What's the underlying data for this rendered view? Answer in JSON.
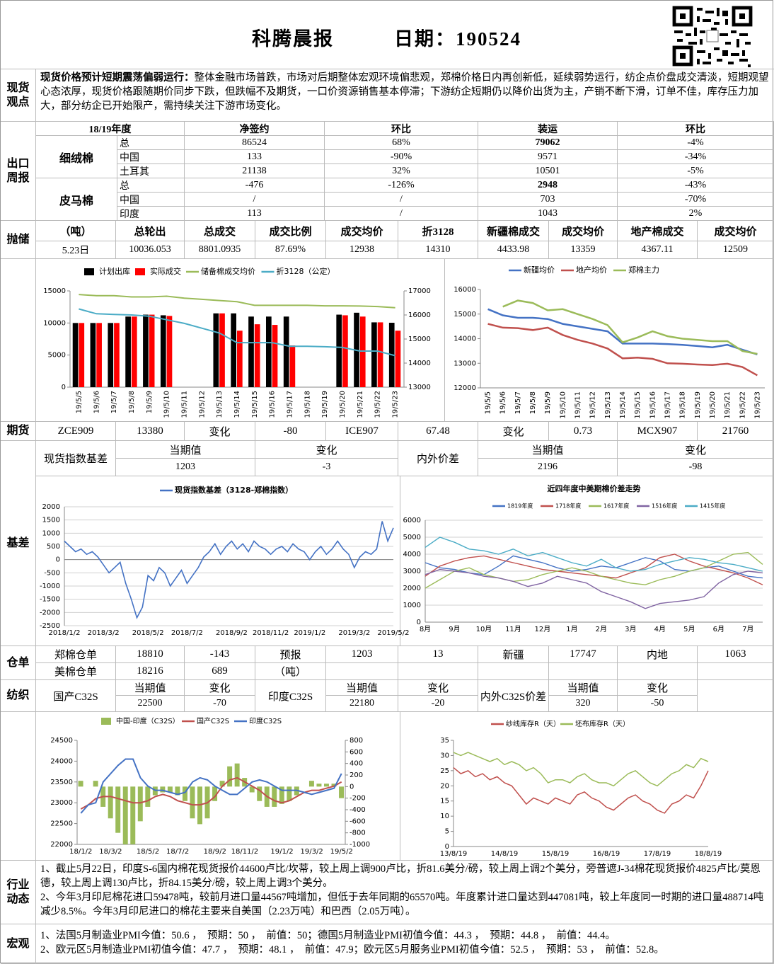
{
  "header": {
    "title": "科腾晨报",
    "date": "日期：190524"
  },
  "spot_view": {
    "label": "现货观点",
    "headline": "现货价格预计短期震荡偏弱运行：",
    "text": "整体金融市场普跌，市场对后期整体宏观环境偏悲观，郑棉价格日内再创新低，延续弱势运行，纺企点价盘成交清淡，短期观望心态浓厚，现货价格跟随期价同步下跌，但跌幅不及期货，一口价资源销售基本停滞；下游纺企短期仍以降价出货为主，产销不断下滑，订单不佳，库存压力加大，部分纺企已开始限产，需持续关注下游市场变化。"
  },
  "export_weekly": {
    "label": "出口周报",
    "season": "18/19年度",
    "columns": [
      "净签约",
      "环比",
      "装运",
      "环比"
    ],
    "groups": [
      {
        "name": "细绒棉",
        "rows": [
          [
            "总",
            "86524",
            "68%",
            "79062",
            "-4%"
          ],
          [
            "中国",
            "133",
            "-90%",
            "9571",
            "-34%"
          ],
          [
            "土耳其",
            "21138",
            "32%",
            "10501",
            "-5%"
          ]
        ]
      },
      {
        "name": "皮马棉",
        "rows": [
          [
            "总",
            "-476",
            "-126%",
            "2948",
            "-43%"
          ],
          [
            "中国",
            "/",
            "/",
            "703",
            "-70%"
          ],
          [
            "印度",
            "113",
            "/",
            "1043",
            "2%"
          ]
        ]
      }
    ]
  },
  "reserve_sale": {
    "label": "抛储",
    "header": [
      "（吨）",
      "总轮出",
      "总成交",
      "成交比例",
      "成交均价",
      "折3128",
      "新疆棉成交",
      "成交均价",
      "地产棉成交",
      "成交均价"
    ],
    "row": [
      "5.23日",
      "10036.053",
      "8801.0935",
      "87.69%",
      "12938",
      "14310",
      "4433.98",
      "13359",
      "4367.11",
      "12509"
    ]
  },
  "futures": {
    "label": "期货",
    "cells": [
      "ZCE909",
      "13380",
      "变化",
      "-80",
      "ICE907",
      "67.48",
      "变化",
      "0.73",
      "MCX907",
      "21760"
    ]
  },
  "basis": {
    "label": "基差",
    "index_label": "现货指数基差",
    "index_header": [
      "当期值",
      "变化"
    ],
    "index_values": [
      "1203",
      "-3"
    ],
    "spread_label": "内外价差",
    "spread_header": [
      "当期值",
      "变化"
    ],
    "spread_values": [
      "2196",
      "-98"
    ]
  },
  "warehouse": {
    "label": "仓单",
    "rows": [
      [
        "郑棉仓单",
        "18810",
        "-143",
        "预报",
        "1203",
        "13",
        "新疆",
        "17747",
        "内地",
        "1063"
      ],
      [
        "美棉仓单",
        "18216",
        "689",
        "（吨）"
      ]
    ]
  },
  "textile": {
    "label": "纺织",
    "groups": [
      {
        "name": "国产C32S",
        "header": [
          "当期值",
          "变化"
        ],
        "values": [
          "22500",
          "-70"
        ]
      },
      {
        "name": "印度C32S",
        "header": [
          "当期值",
          "变化"
        ],
        "values": [
          "22180",
          "-20"
        ]
      },
      {
        "name": "内外C32S价差",
        "header": [
          "当期值",
          "变化"
        ],
        "values": [
          "320",
          "-50"
        ]
      }
    ]
  },
  "charts": [
    {
      "type": "bar-line",
      "categories": [
        "19/5/5",
        "19/5/6",
        "19/5/7",
        "19/5/8",
        "19/5/9",
        "19/5/10",
        "19/5/11",
        "19/5/12",
        "19/5/13",
        "19/5/14",
        "19/5/15",
        "19/5/16",
        "19/5/17",
        "19/5/18",
        "19/5/19",
        "19/5/20",
        "19/5/21",
        "19/5/22",
        "19/5/23"
      ],
      "ylim": [
        0,
        15000
      ],
      "yticks": [
        0,
        5000,
        10000,
        15000
      ],
      "y2lim": [
        13000,
        17000
      ],
      "y2ticks": [
        13000,
        14000,
        15000,
        16000,
        17000
      ],
      "series": [
        {
          "name": "计划出库",
          "color": "#000000",
          "kind": "bar",
          "values": [
            10000,
            10000,
            10000,
            11000,
            11300,
            11200,
            null,
            null,
            11500,
            11500,
            11000,
            11000,
            11000,
            null,
            null,
            11300,
            11600,
            10100,
            10036
          ]
        },
        {
          "name": "实际成交",
          "color": "#ff0000",
          "kind": "bar",
          "values": [
            10000,
            10000,
            10000,
            11000,
            11300,
            11100,
            null,
            null,
            11500,
            8800,
            9800,
            9700,
            6500,
            null,
            null,
            11200,
            11000,
            10100,
            8801
          ]
        },
        {
          "name": "储备棉成交均价",
          "color": "#9bbb59",
          "kind": "line",
          "axis": "y2",
          "values": [
            16850,
            16800,
            16800,
            16750,
            16750,
            16780,
            16700,
            16650,
            16600,
            16550,
            16400,
            16400,
            16400,
            16400,
            16380,
            16380,
            16370,
            16350,
            16300
          ]
        },
        {
          "name": "折3128（公定）",
          "color": "#4bacc6",
          "kind": "line",
          "axis": "y2",
          "values": [
            16250,
            16050,
            16020,
            16000,
            15950,
            15800,
            15650,
            15450,
            15250,
            14850,
            14850,
            14850,
            14700,
            14700,
            14680,
            14650,
            14500,
            14500,
            14310
          ]
        }
      ]
    },
    {
      "type": "line",
      "categories": [
        "19/5/5",
        "19/5/6",
        "19/5/7",
        "19/5/8",
        "19/5/9",
        "19/5/10",
        "19/5/11",
        "19/5/12",
        "19/5/13",
        "19/5/14",
        "19/5/15",
        "19/5/16",
        "19/5/17",
        "19/5/18",
        "19/5/19",
        "19/5/20",
        "19/5/21",
        "19/5/22",
        "19/5/23"
      ],
      "ylim": [
        12000,
        16000
      ],
      "yticks": [
        12000,
        13000,
        14000,
        15000,
        16000
      ],
      "series": [
        {
          "name": "新疆均价",
          "color": "#4472c4",
          "values": [
            15200,
            14950,
            14850,
            14850,
            14800,
            14600,
            14500,
            14400,
            14300,
            13800,
            13800,
            13800,
            13780,
            13750,
            13700,
            13650,
            13750,
            13550,
            13359
          ]
        },
        {
          "name": "地产均价",
          "color": "#c0504d",
          "values": [
            14600,
            14450,
            14430,
            14350,
            14450,
            14150,
            13950,
            13800,
            13600,
            13200,
            13230,
            13180,
            13000,
            12980,
            12950,
            12930,
            12980,
            12850,
            12509
          ]
        },
        {
          "name": "郑棉主力",
          "color": "#9bbb59",
          "values": [
            null,
            15300,
            15550,
            15450,
            15150,
            15200,
            15000,
            14800,
            14550,
            13850,
            14050,
            14300,
            14100,
            14000,
            13950,
            13900,
            13900,
            13500,
            13380
          ]
        }
      ]
    },
    {
      "type": "line",
      "grid": true,
      "categories": [
        "2018/1/2",
        null,
        null,
        null,
        null,
        null,
        null,
        "2018/3/2",
        null,
        null,
        null,
        null,
        null,
        null,
        null,
        "2018/5/2",
        null,
        null,
        null,
        null,
        null,
        null,
        "2018/7/2",
        null,
        null,
        null,
        null,
        null,
        null,
        null,
        "2018/9/2",
        null,
        null,
        null,
        null,
        null,
        null,
        "2018/11/2",
        null,
        null,
        null,
        null,
        null,
        null,
        "2019/1/2",
        null,
        null,
        null,
        null,
        null,
        null,
        null,
        "2019/3/2",
        null,
        null,
        null,
        null,
        null,
        null,
        "2019/5/2"
      ],
      "ylim": [
        -2500,
        2000
      ],
      "yticks": [
        -2500,
        -2000,
        -1500,
        -1000,
        -500,
        0,
        500,
        1000,
        1500,
        2000
      ],
      "series": [
        {
          "name": "现货指数基差（3128-郑棉指数）",
          "color": "#4472c4",
          "values": [
            700,
            500,
            300,
            400,
            200,
            300,
            100,
            -200,
            -500,
            -300,
            -100,
            -900,
            -1500,
            -2200,
            -1800,
            -600,
            -800,
            -300,
            -500,
            -1000,
            -700,
            -400,
            -900,
            -600,
            -300,
            100,
            300,
            600,
            200,
            500,
            700,
            400,
            600,
            300,
            700,
            500,
            400,
            200,
            400,
            500,
            300,
            600,
            400,
            300,
            0,
            300,
            500,
            200,
            400,
            700,
            400,
            200,
            -300,
            100,
            300,
            200,
            400,
            1450,
            700,
            1203
          ]
        }
      ]
    },
    {
      "type": "line",
      "grid": true,
      "title": "近四年度中美期棉价差走势",
      "categories": [
        "8月",
        null,
        "9月",
        null,
        "10月",
        null,
        "11月",
        null,
        "12月",
        null,
        "1月",
        null,
        "2月",
        null,
        "3月",
        null,
        "4月",
        null,
        "5月",
        null,
        "6月",
        null,
        "7月",
        null
      ],
      "ylim": [
        0,
        6000
      ],
      "yticks": [
        0,
        1000,
        2000,
        3000,
        4000,
        5000,
        6000
      ],
      "series": [
        {
          "name": "1819年度",
          "color": "#4472c4",
          "values": [
            3500,
            3200,
            3100,
            2900,
            2800,
            3300,
            3900,
            3700,
            3500,
            3200,
            3000,
            3100,
            3300,
            3200,
            3500,
            3800,
            3600,
            3100,
            3000,
            3200,
            3300,
            3000,
            2700,
            2600
          ]
        },
        {
          "name": "1718年度",
          "color": "#c0504d",
          "values": [
            2700,
            3300,
            3600,
            3800,
            3900,
            3700,
            3500,
            3300,
            3100,
            3000,
            2900,
            2800,
            2700,
            2600,
            2900,
            3200,
            3800,
            4000,
            3600,
            3300,
            3100,
            2900,
            2600,
            2200
          ]
        },
        {
          "name": "1617年度",
          "color": "#9bbb59",
          "values": [
            2000,
            2500,
            3000,
            3200,
            2800,
            2600,
            2400,
            2500,
            2800,
            3000,
            3200,
            3000,
            2700,
            2500,
            2300,
            2200,
            2500,
            2700,
            3000,
            3200,
            3600,
            4000,
            4100,
            3400
          ]
        },
        {
          "name": "1516年度",
          "color": "#8064a2",
          "values": [
            2800,
            3100,
            3000,
            2900,
            2700,
            2600,
            2400,
            2100,
            2300,
            2700,
            2500,
            2300,
            1800,
            1500,
            1200,
            800,
            1100,
            1200,
            1300,
            1500,
            2300,
            2800,
            3000,
            2900
          ]
        },
        {
          "name": "1415年度",
          "color": "#4bacc6",
          "values": [
            4400,
            5000,
            4700,
            4300,
            4200,
            4000,
            4300,
            3900,
            4100,
            3800,
            3500,
            3300,
            3700,
            3200,
            3000,
            3100,
            3400,
            3600,
            3800,
            3700,
            3500,
            3400,
            3200,
            3000
          ]
        }
      ]
    },
    {
      "type": "bar-line",
      "categories": [
        "18/1/2",
        null,
        null,
        null,
        "18/3/2",
        null,
        null,
        null,
        null,
        "18/5/2",
        null,
        null,
        null,
        "18/7/2",
        null,
        null,
        null,
        null,
        "18/9/2",
        null,
        null,
        null,
        "18/11/2",
        null,
        null,
        null,
        null,
        "19/1/2",
        null,
        null,
        null,
        "19/3/2",
        null,
        null,
        null,
        "19/5/2"
      ],
      "ylim": [
        22000,
        24500
      ],
      "yticks": [
        22000,
        22500,
        23000,
        23500,
        24000,
        24500
      ],
      "y2lim": [
        -1000,
        800
      ],
      "y2ticks": [
        -1000,
        -800,
        -600,
        -400,
        -200,
        0,
        200,
        400,
        600,
        800
      ],
      "series": [
        {
          "name": "中国-印度（C32S）",
          "color": "#9bbb59",
          "kind": "bar",
          "axis": "y2",
          "values": [
            100,
            0,
            100,
            -350,
            -550,
            -800,
            -1000,
            -1000,
            -600,
            -350,
            -150,
            -100,
            -100,
            -150,
            -250,
            -550,
            -650,
            -550,
            -250,
            100,
            350,
            400,
            150,
            -100,
            -250,
            -350,
            -350,
            -300,
            -250,
            -150,
            0,
            100,
            50,
            50,
            50,
            -200
          ]
        },
        {
          "name": "国产C32S",
          "color": "#c0504d",
          "kind": "line",
          "values": [
            22850,
            22950,
            23100,
            23150,
            23150,
            23100,
            23050,
            23000,
            23000,
            23050,
            23150,
            23200,
            23150,
            23050,
            23000,
            22950,
            22950,
            23000,
            23150,
            23400,
            23550,
            23600,
            23500,
            23400,
            23300,
            23150,
            23050,
            23000,
            23050,
            23150,
            23250,
            23300,
            23300,
            23350,
            23400,
            23500
          ]
        },
        {
          "name": "印度C32S",
          "color": "#4472c4",
          "kind": "line",
          "values": [
            22750,
            22950,
            23000,
            23500,
            23700,
            23900,
            24050,
            24050,
            23600,
            23400,
            23300,
            23300,
            23250,
            23200,
            23250,
            23500,
            23600,
            23550,
            23400,
            23300,
            23200,
            23200,
            23350,
            23500,
            23550,
            23500,
            23400,
            23300,
            23300,
            23300,
            23250,
            23200,
            23250,
            23300,
            23350,
            23700
          ]
        }
      ]
    },
    {
      "type": "line",
      "categories": [
        "13/8/19",
        null,
        null,
        null,
        null,
        null,
        null,
        "14/8/19",
        null,
        null,
        null,
        null,
        null,
        null,
        "15/8/19",
        null,
        null,
        null,
        null,
        null,
        null,
        "16/8/19",
        null,
        null,
        null,
        null,
        null,
        null,
        "17/8/19",
        null,
        null,
        null,
        null,
        null,
        null,
        "18/8/19"
      ],
      "ylim": [
        0,
        35
      ],
      "yticks": [
        0,
        5,
        10,
        15,
        20,
        25,
        30,
        35
      ],
      "series": [
        {
          "name": "纱线库存R（天）",
          "color": "#c0504d",
          "values": [
            26,
            24,
            25,
            23,
            24,
            22,
            23,
            21,
            20,
            17,
            14,
            16,
            15,
            14,
            16,
            15,
            14,
            17,
            18,
            16,
            15,
            13,
            12,
            14,
            16,
            17,
            15,
            14,
            12,
            11,
            14,
            15,
            17,
            16,
            20,
            25
          ]
        },
        {
          "name": "坯布库存R（天）",
          "color": "#9bbb59",
          "values": [
            31,
            30,
            31,
            30,
            29,
            28,
            29,
            27,
            28,
            27,
            25,
            26,
            24,
            21,
            22,
            22,
            21,
            23,
            24,
            22,
            21,
            21,
            20,
            22,
            24,
            25,
            23,
            21,
            20,
            22,
            24,
            25,
            27,
            26,
            29,
            28
          ]
        }
      ]
    }
  ],
  "industry": {
    "label": "行业动态",
    "paragraphs": [
      "1、截止5月22日，印度S-6国内棉花现货报价44600卢比/坎蒂，较上周上调900卢比，折81.6美分/磅，较上周上调2个美分，旁普遮J-34棉花现货报价4825卢比/莫恩德，较上周上调130卢比，折84.15美分/磅，较上周上调3个美分。",
      "2、今年3月印尼棉花进口59478吨，较前月进口量44567吨增加，但低于去年同期的65570吨。年度累计进口量达到447081吨，较上年度同一时期的进口量488714吨减少8.5%。今年3月印尼进口的棉花主要来自美国（2.23万吨）和巴西（2.05万吨）。"
    ]
  },
  "macro": {
    "label": "宏观",
    "lines": [
      "1、法国5月制造业PMI今值：50.6 ，  预期：50 ，  前值：50；德国5月制造业PMI初值今值：44.3 ，  预期：44.8 ，  前值：44.4。",
      "2、欧元区5月制造业PMI初值今值：47.7 ，  预期：48.1 ，  前值：47.9；欧元区5月服务业PMI初值今值：52.5 ，  预期：53 ，  前值：52.8。"
    ]
  }
}
